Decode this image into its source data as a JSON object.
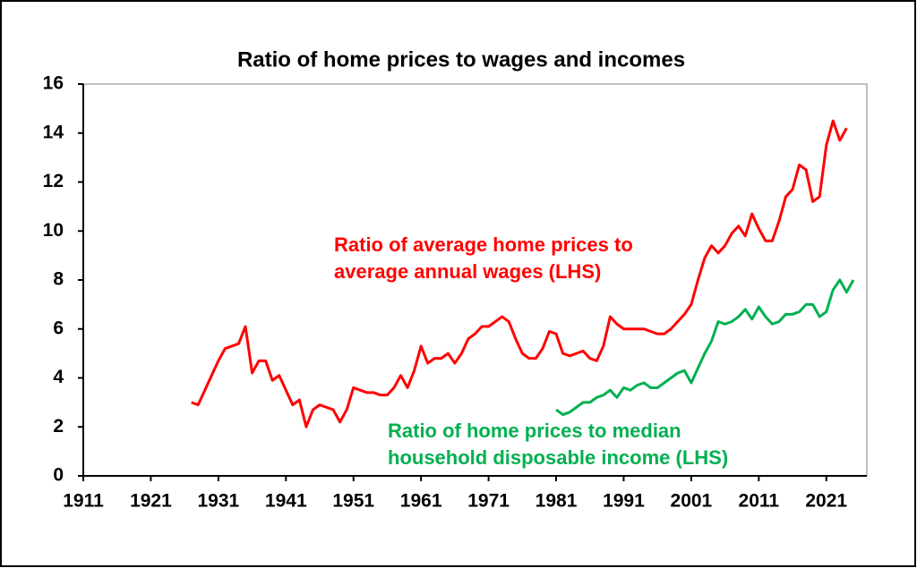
{
  "chart_data": {
    "type": "line",
    "title": "Ratio of home prices to wages and incomes",
    "xlim": [
      1911,
      2027
    ],
    "xticks": [
      1911,
      1921,
      1931,
      1941,
      1951,
      1961,
      1971,
      1981,
      1991,
      2001,
      2011,
      2021
    ],
    "ylim": [
      0,
      16
    ],
    "yticks": [
      0,
      2,
      4,
      6,
      8,
      10,
      12,
      14,
      16
    ],
    "grid": false,
    "series": [
      {
        "name": [
          "Ratio of average home prices to",
          "average annual wages (LHS)"
        ],
        "color": "#ff0000",
        "x": [
          1927,
          1928,
          1929,
          1930,
          1931,
          1932,
          1933,
          1934,
          1935,
          1936,
          1937,
          1938,
          1939,
          1940,
          1941,
          1942,
          1943,
          1944,
          1945,
          1946,
          1947,
          1948,
          1949,
          1950,
          1951,
          1952,
          1953,
          1954,
          1955,
          1956,
          1957,
          1958,
          1959,
          1960,
          1961,
          1962,
          1963,
          1964,
          1965,
          1966,
          1967,
          1968,
          1969,
          1970,
          1971,
          1972,
          1973,
          1974,
          1975,
          1976,
          1977,
          1978,
          1979,
          1980,
          1981,
          1982,
          1983,
          1984,
          1985,
          1986,
          1987,
          1988,
          1989,
          1990,
          1991,
          1992,
          1993,
          1994,
          1995,
          1996,
          1997,
          1998,
          1999,
          2000,
          2001,
          2002,
          2003,
          2004,
          2005,
          2006,
          2007,
          2008,
          2009,
          2010,
          2011,
          2012,
          2013,
          2014,
          2015,
          2016,
          2017,
          2018,
          2019,
          2020,
          2021,
          2022,
          2023,
          2024
        ],
        "values": [
          3.0,
          2.9,
          3.5,
          4.1,
          4.7,
          5.2,
          5.3,
          5.4,
          6.1,
          4.2,
          4.7,
          4.7,
          3.9,
          4.1,
          3.5,
          2.9,
          3.1,
          2.0,
          2.7,
          2.9,
          2.8,
          2.7,
          2.2,
          2.7,
          3.6,
          3.5,
          3.4,
          3.4,
          3.3,
          3.3,
          3.6,
          4.1,
          3.6,
          4.3,
          5.3,
          4.6,
          4.8,
          4.8,
          5.0,
          4.6,
          5.0,
          5.6,
          5.8,
          6.1,
          6.1,
          6.3,
          6.5,
          6.3,
          5.6,
          5.0,
          4.8,
          4.8,
          5.2,
          5.9,
          5.8,
          5.0,
          4.9,
          5.0,
          5.1,
          4.8,
          4.7,
          5.3,
          6.5,
          6.2,
          6.0,
          6.0,
          6.0,
          6.0,
          5.9,
          5.8,
          5.8,
          6.0,
          6.3,
          6.6,
          7.0,
          8.0,
          8.9,
          9.4,
          9.1,
          9.4,
          9.9,
          10.2,
          9.8,
          10.7,
          10.1,
          9.6,
          9.6,
          10.4,
          11.4,
          11.7,
          12.7,
          12.5,
          11.2,
          11.4,
          13.5,
          14.5,
          13.7,
          14.2
        ]
      },
      {
        "name": [
          "Ratio of home prices to median",
          "household disposable income (LHS)"
        ],
        "color": "#00b050",
        "x": [
          1981,
          1982,
          1983,
          1984,
          1985,
          1986,
          1987,
          1988,
          1989,
          1990,
          1991,
          1992,
          1993,
          1994,
          1995,
          1996,
          1997,
          1998,
          1999,
          2000,
          2001,
          2002,
          2003,
          2004,
          2005,
          2006,
          2007,
          2008,
          2009,
          2010,
          2011,
          2012,
          2013,
          2014,
          2015,
          2016,
          2017,
          2018,
          2019,
          2020,
          2021,
          2022,
          2023,
          2024,
          2025
        ],
        "values": [
          2.7,
          2.5,
          2.6,
          2.8,
          3.0,
          3.0,
          3.2,
          3.3,
          3.5,
          3.2,
          3.6,
          3.5,
          3.7,
          3.8,
          3.6,
          3.6,
          3.8,
          4.0,
          4.2,
          4.3,
          3.8,
          4.4,
          5.0,
          5.5,
          6.3,
          6.2,
          6.3,
          6.5,
          6.8,
          6.4,
          6.9,
          6.5,
          6.2,
          6.3,
          6.6,
          6.6,
          6.7,
          7.0,
          7.0,
          6.5,
          6.7,
          7.6,
          8.0,
          7.5,
          8.0
        ]
      }
    ]
  }
}
